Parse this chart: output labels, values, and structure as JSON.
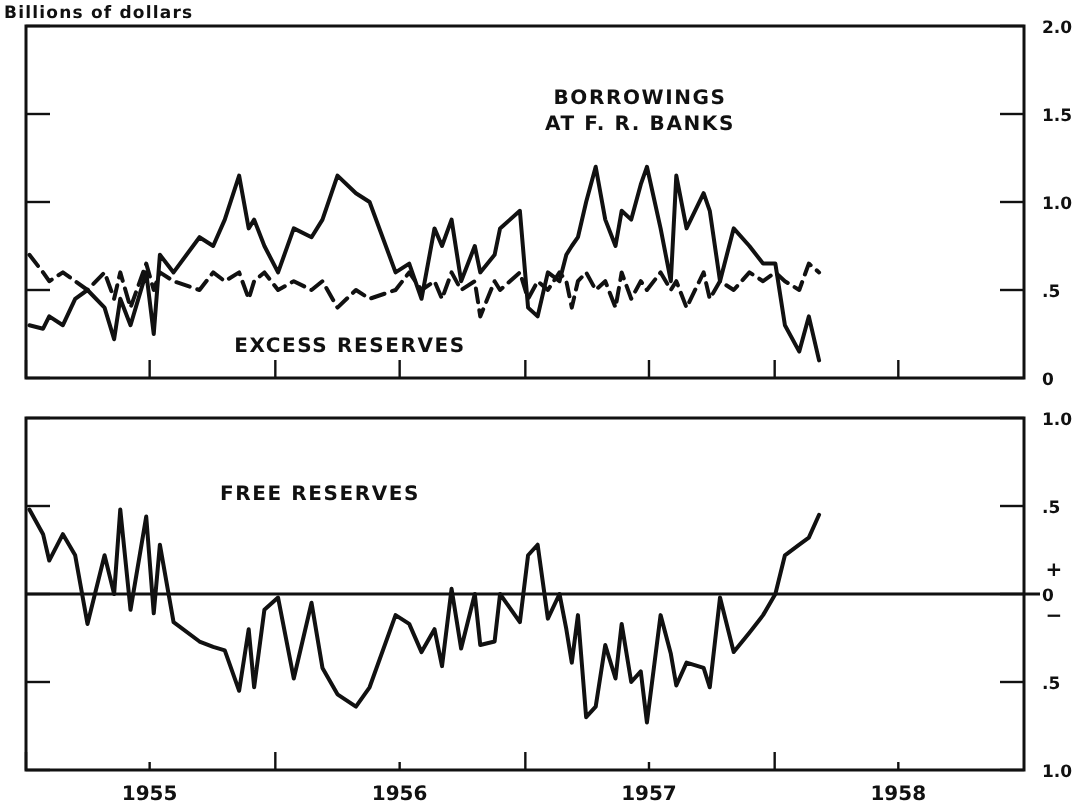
{
  "chart_data": [
    {
      "type": "line",
      "ylabel": "Billions of dollars",
      "xlim": [
        "1955-01-01",
        "1959-01-01"
      ],
      "ylim": [
        0,
        2
      ],
      "yticks": [
        0,
        {
          "value": 0.5,
          "label": ".5"
        },
        {
          "value": 1,
          "label": "1.0"
        },
        {
          "value": 1.5,
          "label": "1.5"
        },
        {
          "value": 2,
          "label": "2.0"
        }
      ],
      "tick_labels": "y",
      "xticks": [
        {
          "value": "1955-01-01",
          "label": null
        },
        {
          "value": "1955-07-01",
          "label": null
        },
        {
          "value": "1956-01-01",
          "label": null
        },
        {
          "value": "1956-07-01",
          "label": null
        },
        {
          "value": "1957-01-01",
          "label": null
        },
        {
          "value": "1957-07-01",
          "label": null
        },
        {
          "value": "1958-01-01",
          "label": null
        },
        {
          "value": "1958-07-01",
          "label": null
        }
      ],
      "x": [
        "1955-01-06",
        "1955-01-26",
        "1955-02-04",
        "1955-02-24",
        "1955-03-14",
        "1955-04-01",
        "1955-04-26",
        "1955-05-10",
        "1955-05-19",
        "1955-06-03",
        "1955-06-26",
        "1955-07-07",
        "1955-07-16",
        "1955-08-05",
        "1955-09-12",
        "1955-10-02",
        "1955-10-19",
        "1955-11-09",
        "1955-11-23",
        "1955-12-01",
        "1955-12-16",
        "1956-01-05",
        "1956-01-28",
        "1956-02-23",
        "1956-03-10",
        "1956-04-01",
        "1956-04-28",
        "1956-05-18",
        "1956-06-25",
        "1956-07-15",
        "1956-08-02",
        "1956-08-21",
        "1956-09-01",
        "1956-09-15",
        "1956-09-29",
        "1956-10-19",
        "1956-10-27",
        "1956-11-17",
        "1956-11-25",
        "1956-12-24",
        "1957-01-05",
        "1957-01-19",
        "1957-02-03",
        "1957-02-20",
        "1957-03-02",
        "1957-03-10",
        "1957-03-19",
        "1957-03-31",
        "1957-04-14",
        "1957-04-28",
        "1957-05-13",
        "1957-05-22",
        "1957-06-05",
        "1957-06-19",
        "1957-06-28",
        "1957-07-18",
        "1957-08-02",
        "1957-08-10",
        "1957-08-25",
        "1957-09-19",
        "1957-09-28",
        "1957-10-13",
        "1957-11-02",
        "1957-11-25",
        "1957-12-15",
        "1958-01-02",
        "1958-01-16",
        "1958-02-06",
        "1958-02-20",
        "1958-03-07"
      ],
      "series": [
        {
          "name": "BORROWINGS AT F. R. BANKS",
          "color": "#111111",
          "line_style": "solid",
          "values": [
            0.3,
            0.28,
            0.35,
            0.3,
            0.45,
            0.5,
            0.4,
            0.22,
            0.45,
            0.3,
            0.6,
            0.25,
            0.7,
            0.6,
            0.8,
            0.75,
            0.9,
            1.15,
            0.85,
            0.9,
            0.75,
            0.6,
            0.85,
            0.8,
            0.9,
            1.15,
            1.05,
            1.0,
            0.6,
            0.65,
            0.45,
            0.85,
            0.75,
            0.9,
            0.55,
            0.75,
            0.6,
            0.7,
            0.85,
            0.95,
            0.4,
            0.35,
            0.6,
            0.55,
            0.7,
            0.75,
            0.8,
            1.0,
            1.2,
            0.9,
            0.75,
            0.95,
            0.9,
            1.1,
            1.2,
            0.85,
            0.55,
            1.15,
            0.85,
            1.05,
            0.95,
            0.55,
            0.85,
            0.75,
            0.65,
            0.65,
            0.3,
            0.15,
            0.35,
            0.1
          ]
        },
        {
          "name": "EXCESS RESERVES",
          "color": "#111111",
          "line_style": "dashed",
          "values": [
            0.7,
            0.6,
            0.55,
            0.6,
            0.55,
            0.5,
            0.6,
            0.45,
            0.6,
            0.4,
            0.65,
            0.5,
            0.6,
            0.55,
            0.5,
            0.6,
            0.55,
            0.6,
            0.45,
            0.55,
            0.6,
            0.5,
            0.55,
            0.5,
            0.55,
            0.4,
            0.5,
            0.45,
            0.5,
            0.6,
            0.5,
            0.55,
            0.45,
            0.6,
            0.5,
            0.55,
            0.35,
            0.55,
            0.5,
            0.6,
            0.45,
            0.55,
            0.5,
            0.6,
            0.55,
            0.4,
            0.55,
            0.6,
            0.5,
            0.55,
            0.4,
            0.6,
            0.45,
            0.55,
            0.5,
            0.6,
            0.5,
            0.55,
            0.4,
            0.6,
            0.45,
            0.55,
            0.5,
            0.6,
            0.55,
            0.6,
            0.55,
            0.5,
            0.65,
            0.6
          ]
        }
      ]
    },
    {
      "type": "line",
      "xlim": [
        "1955-01-01",
        "1959-01-01"
      ],
      "ylim": [
        -1,
        1
      ],
      "yticks": [
        {
          "value": -1,
          "label": "1.0"
        },
        {
          "value": -0.5,
          "label": ".5"
        },
        0,
        {
          "value": 0.5,
          "label": ".5"
        },
        {
          "value": 1,
          "label": "1.0"
        }
      ],
      "xticks": [
        {
          "value": "1955-01-01",
          "label": null
        },
        {
          "value": "1955-07-01",
          "label": "1955"
        },
        {
          "value": "1956-01-01",
          "label": null
        },
        {
          "value": "1956-07-01",
          "label": "1956"
        },
        {
          "value": "1957-01-01",
          "label": null
        },
        {
          "value": "1957-07-01",
          "label": "1957"
        },
        {
          "value": "1958-01-01",
          "label": null
        },
        {
          "value": "1958-07-01",
          "label": "1958"
        }
      ],
      "annotations": [
        "+",
        "−"
      ],
      "ref_lines": [
        {
          "axis": "y",
          "value": 0,
          "color": "#111111"
        }
      ],
      "x": [
        "1955-01-06",
        "1955-01-26",
        "1955-02-04",
        "1955-02-24",
        "1955-03-14",
        "1955-04-01",
        "1955-04-26",
        "1955-05-10",
        "1955-05-19",
        "1955-06-03",
        "1955-06-26",
        "1955-07-07",
        "1955-07-16",
        "1955-08-05",
        "1955-09-12",
        "1955-10-02",
        "1955-10-19",
        "1955-11-09",
        "1955-11-23",
        "1955-12-01",
        "1955-12-16",
        "1956-01-05",
        "1956-01-28",
        "1956-02-23",
        "1956-03-10",
        "1956-04-01",
        "1956-04-28",
        "1956-05-18",
        "1956-06-25",
        "1956-07-15",
        "1956-08-02",
        "1956-08-21",
        "1956-09-01",
        "1956-09-15",
        "1956-09-29",
        "1956-10-19",
        "1956-10-27",
        "1956-11-17",
        "1956-11-25",
        "1956-12-24",
        "1957-01-05",
        "1957-01-19",
        "1957-02-03",
        "1957-02-20",
        "1957-03-02",
        "1957-03-10",
        "1957-03-19",
        "1957-03-31",
        "1957-04-14",
        "1957-04-28",
        "1957-05-13",
        "1957-05-22",
        "1957-06-05",
        "1957-06-19",
        "1957-06-28",
        "1957-07-18",
        "1957-08-02",
        "1957-08-10",
        "1957-08-25",
        "1957-09-19",
        "1957-09-28",
        "1957-10-13",
        "1957-11-02",
        "1957-11-25",
        "1957-12-15",
        "1958-01-02",
        "1958-01-16",
        "1958-02-06",
        "1958-02-20",
        "1958-03-07"
      ],
      "series": [
        {
          "name": "FREE RESERVES",
          "color": "#111111",
          "line_style": "solid",
          "values": [
            0.48,
            0.34,
            0.19,
            0.34,
            0.22,
            -0.17,
            0.22,
            0.0,
            0.48,
            -0.09,
            0.44,
            -0.11,
            0.28,
            -0.16,
            -0.27,
            -0.3,
            -0.32,
            -0.55,
            -0.2,
            -0.53,
            -0.09,
            -0.02,
            -0.48,
            -0.05,
            -0.42,
            -0.57,
            -0.64,
            -0.53,
            -0.12,
            -0.17,
            -0.33,
            -0.2,
            -0.41,
            0.03,
            -0.31,
            0.0,
            -0.29,
            -0.27,
            0.0,
            -0.16,
            0.22,
            0.28,
            -0.14,
            0.0,
            -0.2,
            -0.39,
            -0.12,
            -0.7,
            -0.64,
            -0.29,
            -0.48,
            -0.17,
            -0.5,
            -0.44,
            -0.73,
            -0.12,
            -0.34,
            -0.52,
            -0.39,
            -0.42,
            -0.53,
            -0.02,
            -0.33,
            -0.22,
            -0.12,
            0.0,
            0.22,
            0.28,
            0.32,
            0.45
          ]
        }
      ]
    }
  ]
}
